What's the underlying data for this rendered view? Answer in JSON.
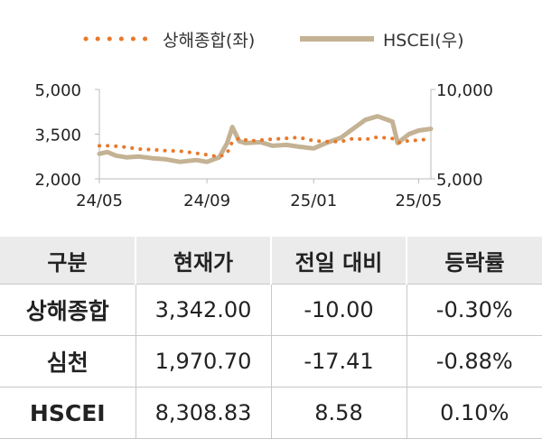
{
  "chart_data": {
    "type": "line",
    "x_ticks": [
      "24/05",
      "24/09",
      "25/01",
      "25/05"
    ],
    "left_axis": {
      "ticks": [
        "5,000",
        "3,500",
        "2,000"
      ],
      "ylim": [
        2000,
        5000
      ]
    },
    "right_axis": {
      "ticks": [
        "10,000",
        "5,000"
      ],
      "ylim": [
        5000,
        10000
      ]
    },
    "legend_position": "top",
    "series": [
      {
        "name": "상해종합(좌)",
        "axis": "left",
        "color": "#E8792B",
        "style": "dotted",
        "x": [
          "2024-05-01",
          "2024-05-15",
          "2024-06-01",
          "2024-06-15",
          "2024-07-01",
          "2024-07-15",
          "2024-08-01",
          "2024-08-15",
          "2024-09-01",
          "2024-09-15",
          "2024-09-24",
          "2024-09-30",
          "2024-10-08",
          "2024-10-20",
          "2024-11-01",
          "2024-11-15",
          "2024-12-01",
          "2024-12-15",
          "2025-01-01",
          "2025-01-15",
          "2025-02-01",
          "2025-02-15",
          "2025-03-01",
          "2025-03-15",
          "2025-04-01",
          "2025-04-10",
          "2025-04-20",
          "2025-05-01",
          "2025-05-15"
        ],
        "values": [
          3110,
          3110,
          3060,
          3000,
          2980,
          2950,
          2930,
          2880,
          2810,
          2740,
          2860,
          3250,
          3360,
          3270,
          3300,
          3330,
          3360,
          3390,
          3280,
          3250,
          3250,
          3350,
          3320,
          3400,
          3350,
          3200,
          3290,
          3290,
          3350
        ]
      },
      {
        "name": "HSCEI(우)",
        "axis": "right",
        "color": "#C4B294",
        "style": "solid",
        "x": [
          "2024-05-01",
          "2024-05-10",
          "2024-05-20",
          "2024-06-01",
          "2024-06-15",
          "2024-07-01",
          "2024-07-15",
          "2024-08-01",
          "2024-08-10",
          "2024-08-20",
          "2024-09-01",
          "2024-09-15",
          "2024-09-24",
          "2024-09-30",
          "2024-10-08",
          "2024-10-15",
          "2024-11-01",
          "2024-11-15",
          "2024-12-01",
          "2024-12-15",
          "2025-01-01",
          "2025-01-15",
          "2025-02-01",
          "2025-02-15",
          "2025-03-01",
          "2025-03-15",
          "2025-04-01",
          "2025-04-07",
          "2025-04-20",
          "2025-05-01",
          "2025-05-15"
        ],
        "values": [
          6400,
          6500,
          6300,
          6200,
          6250,
          6150,
          6100,
          5950,
          6000,
          6050,
          5950,
          6200,
          7000,
          7900,
          7100,
          7000,
          7050,
          6850,
          6900,
          6800,
          6700,
          7000,
          7300,
          7800,
          8300,
          8500,
          8200,
          7000,
          7500,
          7700,
          7800
        ]
      }
    ]
  },
  "table": {
    "headers": [
      "구분",
      "현재가",
      "전일 대비",
      "등락률"
    ],
    "rows": [
      [
        "상해종합",
        "3,342.00",
        "-10.00",
        "-0.30%"
      ],
      [
        "심천",
        "1,970.70",
        "-17.41",
        "-0.88%"
      ],
      [
        "HSCEI",
        "8,308.83",
        "8.58",
        "0.10%"
      ]
    ]
  }
}
